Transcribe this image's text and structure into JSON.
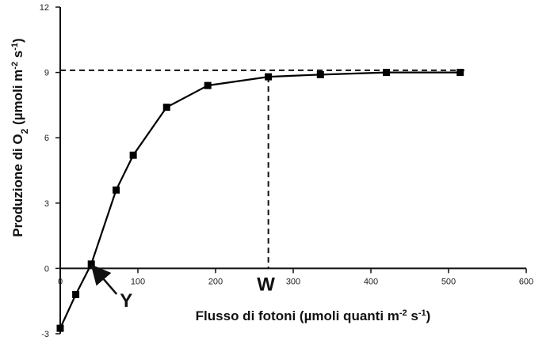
{
  "chart_data": {
    "type": "line",
    "xlabel": {
      "prefix": "Flusso di fotoni (µmoli quanti m",
      "sup1": "-2",
      "mid": " s",
      "sup2": "-1",
      "suffix": ")"
    },
    "ylabel": {
      "prefix": "Produzione di O",
      "sub": "2",
      "mid1": " (µmoli m",
      "sup1": "-2",
      "mid2": " s",
      "sup2": "-1",
      "suffix": ")"
    },
    "xlim": [
      0,
      600
    ],
    "ylim": [
      -3,
      12
    ],
    "xticks": [
      0,
      100,
      200,
      300,
      400,
      500,
      600
    ],
    "yticks": [
      -3,
      0,
      3,
      6,
      9,
      12
    ],
    "grid": false,
    "series": [
      {
        "color": "#000000",
        "marker": "square",
        "x": [
          0,
          20,
          40,
          72,
          94,
          137,
          190,
          268,
          335,
          420,
          515
        ],
        "y": [
          -2.75,
          -1.2,
          0.2,
          3.6,
          5.2,
          7.4,
          8.4,
          8.8,
          8.9,
          9.0,
          9.0
        ]
      }
    ],
    "reference_lines": {
      "horizontal_y": 9.1,
      "vertical_x": 268
    },
    "annotations": [
      {
        "label": "Y",
        "x": 40,
        "y": 0.2
      },
      {
        "label": "W",
        "x": 268,
        "y": 0
      }
    ]
  }
}
